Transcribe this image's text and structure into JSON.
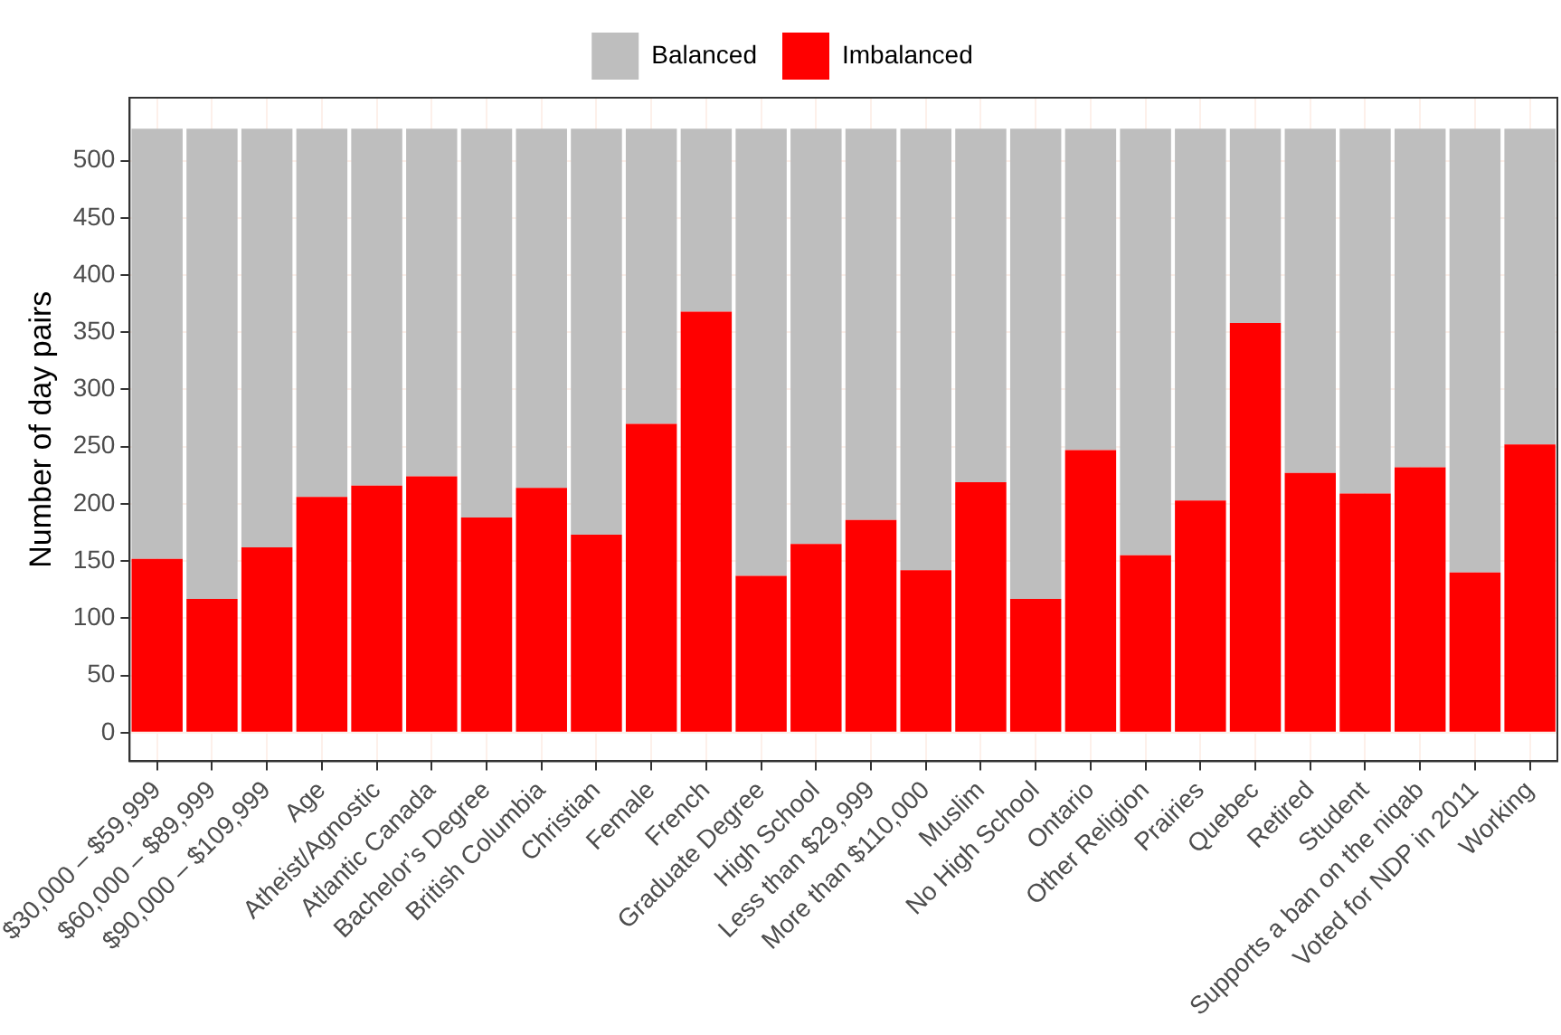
{
  "chart_data": {
    "type": "bar",
    "stacked": true,
    "ylabel": "Number of day pairs",
    "categories": [
      "$30,000 – $59,999",
      "$60,000 – $89,999",
      "$90,000 – $109,999",
      "Age",
      "Atheist/Agnostic",
      "Atlantic Canada",
      "Bachelor’s Degree",
      "British Columbia",
      "Christian",
      "Female",
      "French",
      "Graduate Degree",
      "High School",
      "Less than $29,999",
      "More than $110,000",
      "Muslim",
      "No High School",
      "Ontario",
      "Other Religion",
      "Prairies",
      "Quebec",
      "Retired",
      "Student",
      "Supports a ban on the niqab",
      "Voted for NDP in 2011",
      "Working"
    ],
    "series": [
      {
        "name": "Imbalanced",
        "color": "#ff0000",
        "values": [
          152,
          117,
          162,
          206,
          216,
          224,
          188,
          214,
          173,
          270,
          368,
          137,
          165,
          186,
          142,
          219,
          117,
          247,
          155,
          203,
          358,
          227,
          209,
          232,
          140,
          252
        ]
      },
      {
        "name": "Balanced",
        "color": "#bebebe",
        "values": [
          376,
          411,
          366,
          322,
          312,
          304,
          340,
          314,
          355,
          258,
          160,
          391,
          363,
          342,
          386,
          309,
          411,
          281,
          373,
          325,
          170,
          301,
          319,
          296,
          388,
          276
        ]
      }
    ],
    "ylim": [
      -25,
      555
    ],
    "yticks": [
      0,
      50,
      100,
      150,
      200,
      250,
      300,
      350,
      400,
      450,
      500
    ],
    "grid": true,
    "legend": "top"
  }
}
